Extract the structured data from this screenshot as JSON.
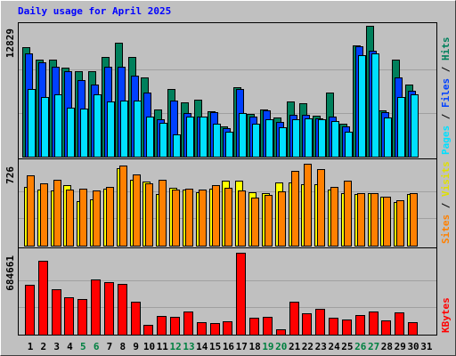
{
  "chart_data": [
    {
      "type": "bar",
      "title": "Daily usage for April 2025",
      "title_color": "#0000ff",
      "ylim": [
        0,
        12829
      ],
      "yticks": [
        12829
      ],
      "grid_lines": [
        4276,
        8553
      ],
      "legend_separator": " / ",
      "series": [
        {
          "name": "Pages",
          "color": "#00e0ff",
          "values": [
            6590,
            5890,
            6150,
            4830,
            4750,
            6150,
            5450,
            5540,
            5540,
            3950,
            3340,
            2200,
            3950,
            3950,
            3250,
            2460,
            4310,
            3250,
            3690,
            2900,
            3690,
            3780,
            3690,
            3520,
            2460,
            9930,
            10100,
            3870,
            5890,
            6150,
            null
          ]
        },
        {
          "name": "Files",
          "color": "#0040ff",
          "values": [
            10100,
            9230,
            8790,
            8350,
            7470,
            7030,
            8790,
            8790,
            7910,
            6240,
            3690,
            5540,
            4310,
            3960,
            4390,
            2810,
            6590,
            3960,
            4570,
            3430,
            4130,
            4130,
            3780,
            3960,
            2990,
            10810,
            10370,
            4390,
            7730,
            6500,
            null
          ]
        },
        {
          "name": "Hits",
          "color": "#00805c",
          "values": [
            10720,
            9490,
            9490,
            8700,
            8350,
            8350,
            9750,
            11160,
            9750,
            7730,
            4660,
            6590,
            5360,
            5620,
            4480,
            2990,
            6770,
            4220,
            4660,
            3870,
            5450,
            5270,
            4040,
            6240,
            3250,
            10900,
            12829,
            4570,
            9490,
            7030,
            null
          ]
        }
      ]
    },
    {
      "type": "bar",
      "ylim": [
        0,
        726
      ],
      "yticks": [
        726
      ],
      "grid_lines": [
        242,
        484
      ],
      "legend_separator": " / ",
      "series": [
        {
          "name": "Sites",
          "color": "#ff8000",
          "values": [
            627,
            553,
            586,
            495,
            503,
            487,
            520,
            710,
            635,
            553,
            586,
            495,
            503,
            495,
            536,
            512,
            487,
            429,
            446,
            478,
            660,
            726,
            677,
            520,
            578,
            462,
            462,
            437,
            404,
            462,
            null
          ]
        },
        {
          "name": "Visits",
          "color": "#ffff00",
          "values": [
            520,
            495,
            487,
            536,
            396,
            413,
            503,
            685,
            586,
            569,
            454,
            512,
            495,
            470,
            503,
            578,
            578,
            470,
            462,
            561,
            561,
            545,
            545,
            495,
            462,
            454,
            462,
            437,
            388,
            454,
            null
          ]
        }
      ]
    },
    {
      "type": "bar",
      "ylim": [
        0,
        684661
      ],
      "yticks": [
        684661
      ],
      "grid_lines": [
        228220,
        456441
      ],
      "categories": [
        "1",
        "2",
        "3",
        "4",
        "5",
        "6",
        "7",
        "8",
        "9",
        "10",
        "11",
        "12",
        "13",
        "14",
        "15",
        "16",
        "17",
        "18",
        "19",
        "20",
        "21",
        "22",
        "23",
        "24",
        "25",
        "26",
        "27",
        "28",
        "29",
        "30",
        "31"
      ],
      "highlighted_categories": [
        "5",
        "6",
        "12",
        "13",
        "19",
        "20",
        "26",
        "27"
      ],
      "highlight_color": "#008040",
      "series": [
        {
          "name": "KBytes",
          "color": "#ff0000",
          "values": [
            414000,
            621000,
            382000,
            310000,
            295000,
            462000,
            438000,
            422000,
            279000,
            80000,
            159000,
            151000,
            191000,
            103000,
            96000,
            111000,
            684661,
            143000,
            151000,
            48000,
            279000,
            175000,
            215000,
            143000,
            127000,
            167000,
            191000,
            119000,
            183000,
            103000,
            null
          ]
        }
      ]
    }
  ]
}
